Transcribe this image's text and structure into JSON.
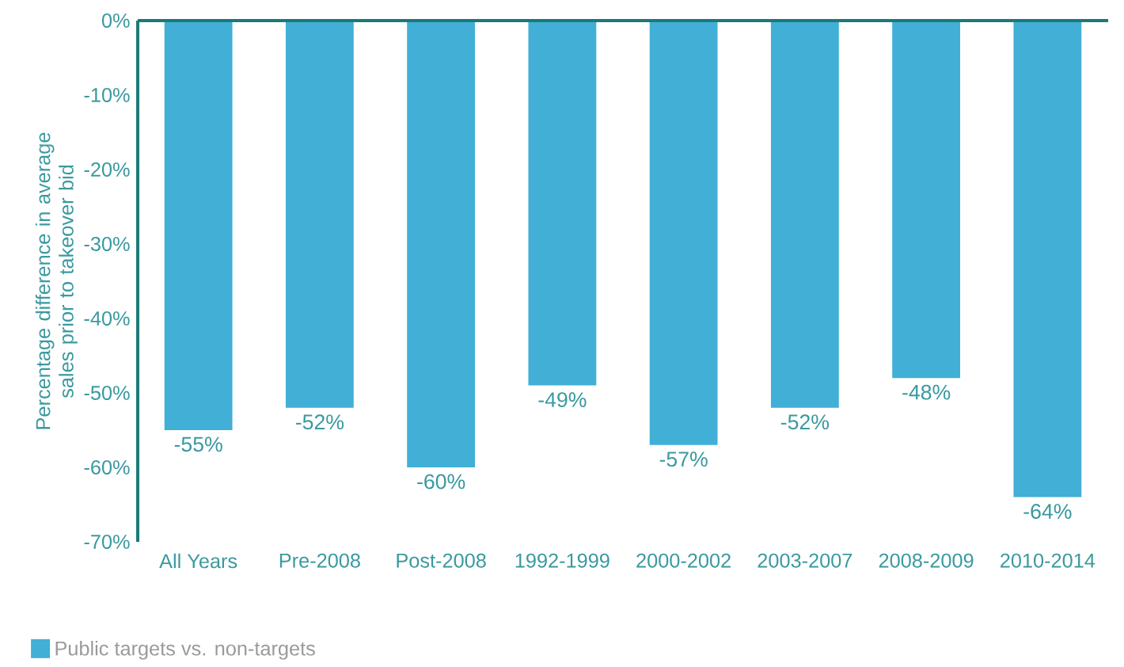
{
  "chart_data": {
    "type": "bar",
    "ylabel": "Percentage difference in average sales prior to takeover bid",
    "categories": [
      "All Years",
      "Pre-2008",
      "Post-2008",
      "1992-1999",
      "2000-2002",
      "2003-2007",
      "2008-2009",
      "2010-2014"
    ],
    "series": [
      {
        "name": "Public targets vs. non-targets",
        "color": "#41afd6",
        "values": [
          -55,
          -52,
          -60,
          -49,
          -57,
          -52,
          -48,
          -64
        ],
        "value_labels": [
          "-55%",
          "-52%",
          "-60%",
          "-49%",
          "-57%",
          "-52%",
          "-48%",
          "-64%"
        ]
      }
    ],
    "ylim": [
      -70,
      0
    ],
    "yticks": [
      {
        "value": 0,
        "label": "0%"
      },
      {
        "value": -10,
        "label": "-10%"
      },
      {
        "value": -20,
        "label": "-20%"
      },
      {
        "value": -30,
        "label": "-30%"
      },
      {
        "value": -40,
        "label": "-40%"
      },
      {
        "value": -50,
        "label": "-50%"
      },
      {
        "value": -60,
        "label": "-60%"
      },
      {
        "value": -70,
        "label": "-70%"
      }
    ],
    "grid": false,
    "legend": "bottom left"
  }
}
